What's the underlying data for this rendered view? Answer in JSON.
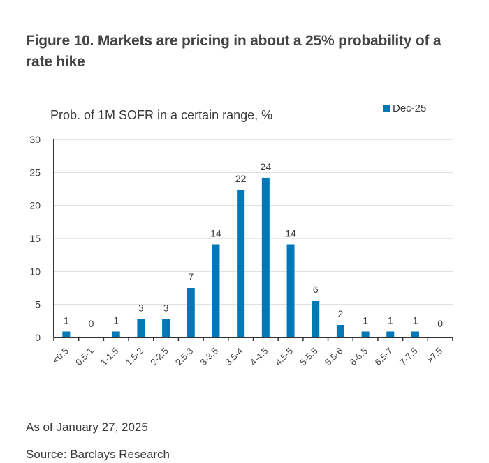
{
  "figure": {
    "title": "Figure 10. Markets are pricing in about a 25% probability of a rate hike",
    "as_of": "As of January 27, 2025",
    "source": "Source: Barclays Research"
  },
  "chart_data": {
    "type": "bar",
    "title": "Prob. of 1M SOFR in a certain range, %",
    "xlabel": "",
    "ylabel": "",
    "ylim": [
      0,
      30
    ],
    "yticks": [
      0,
      5,
      10,
      15,
      20,
      25,
      30
    ],
    "grid": true,
    "legend_position": "top-right",
    "categories": [
      "<0.5",
      "0.5-1",
      "1-1.5",
      "1.5-2",
      "2-2.5",
      "2.5-3",
      "3-3.5",
      "3.5-4",
      "4-4.5",
      "4.5-5",
      "5-5.5",
      "5.5-6",
      "6-6.5",
      "6.5-7",
      "7-7.5",
      ">7.5"
    ],
    "series": [
      {
        "name": "Dec-25",
        "color": "#0077b6",
        "values": [
          0.9,
          0,
          0.9,
          2.8,
          2.8,
          7.5,
          14.1,
          22.4,
          24.2,
          14.1,
          5.6,
          1.9,
          0.9,
          0.9,
          0.9,
          0
        ],
        "data_labels": [
          "1",
          "0",
          "1",
          "3",
          "3",
          "7",
          "14",
          "22",
          "24",
          "14",
          "6",
          "2",
          "1",
          "1",
          "1",
          "0"
        ]
      }
    ]
  }
}
